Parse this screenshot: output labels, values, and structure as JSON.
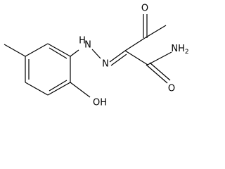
{
  "atoms": [
    {
      "label": "O"
    },
    {
      "label": "H"
    },
    {
      "label": "N"
    },
    {
      "label": "N"
    },
    {
      "label": "NH",
      "subscript": "2"
    },
    {
      "label": "O"
    },
    {
      "label": "OH"
    }
  ]
}
